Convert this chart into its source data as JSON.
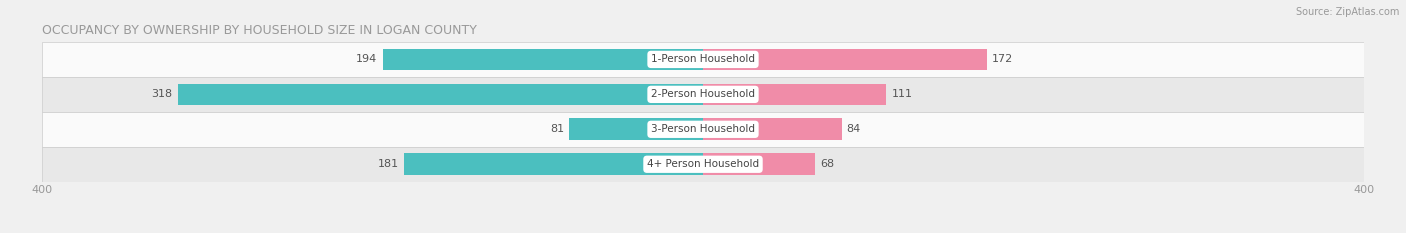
{
  "title": "OCCUPANCY BY OWNERSHIP BY HOUSEHOLD SIZE IN LOGAN COUNTY",
  "source": "Source: ZipAtlas.com",
  "categories": [
    "1-Person Household",
    "2-Person Household",
    "3-Person Household",
    "4+ Person Household"
  ],
  "owner_values": [
    194,
    318,
    81,
    181
  ],
  "renter_values": [
    172,
    111,
    84,
    68
  ],
  "owner_color": "#4BBFBF",
  "renter_color": "#F08CA8",
  "axis_max": 400,
  "bar_height": 0.62,
  "bg_color": "#f0f0f0",
  "row_colors": [
    "#fafafa",
    "#e8e8e8"
  ],
  "title_fontsize": 9,
  "source_fontsize": 7,
  "tick_fontsize": 8,
  "bar_label_fontsize": 8,
  "cat_label_fontsize": 7.5,
  "legend_fontsize": 8,
  "cat_label_color": "#444444",
  "value_label_color": "#555555",
  "tick_color": "#999999"
}
